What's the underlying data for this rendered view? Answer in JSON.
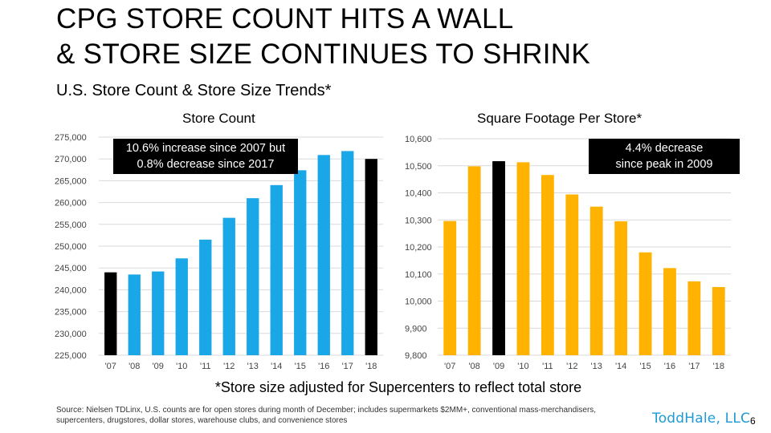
{
  "slide": {
    "title_line1": "CPG STORE COUNT HITS A WALL",
    "title_line2": "& STORE SIZE CONTINUES TO SHRINK",
    "subtitle": "U.S. Store Count & Store Size Trends*",
    "footnote": "*Store size adjusted for Supercenters to reflect total store",
    "source": "Source: Nielsen TDLinx, U.S. counts are for open stores during month of December; includes supermarkets $2MM+, conventional mass-merchandisers, supercenters, drugstores, dollar stores, warehouse clubs, and convenience stores",
    "logo": "ToddHale, LLC",
    "page_number": "6"
  },
  "colors": {
    "left_bar": "#1aa7e8",
    "right_bar": "#ffb300",
    "highlight_bar": "#000000",
    "gridline": "#d9d9d9"
  },
  "chart_data": [
    {
      "type": "bar",
      "title": "Store Count",
      "categories": [
        "'07",
        "'08",
        "'09",
        "'10",
        "'11",
        "'12",
        "'13",
        "'14",
        "'15",
        "'16",
        "'17",
        "'18"
      ],
      "values": [
        244000,
        243500,
        244200,
        247200,
        251500,
        256500,
        261000,
        264000,
        267400,
        270900,
        271800,
        270000
      ],
      "highlight": [
        0,
        11
      ],
      "ylim": [
        225000,
        275000
      ],
      "yticks": [
        225000,
        230000,
        235000,
        240000,
        245000,
        250000,
        255000,
        260000,
        265000,
        270000,
        275000
      ],
      "ytick_labels": [
        "225,000",
        "230,000",
        "235,000",
        "240,000",
        "245,000",
        "250,000",
        "255,000",
        "260,000",
        "265,000",
        "270,000",
        "275,000"
      ],
      "grid": true,
      "annotation": {
        "line1": "10.6% increase since 2007 but",
        "line2": "0.8% decrease since 2017"
      }
    },
    {
      "type": "bar",
      "title": "Square Footage Per Store*",
      "categories": [
        "'07",
        "'08",
        "'09",
        "'10",
        "'11",
        "'12",
        "'13",
        "'14",
        "'15",
        "'16",
        "'17",
        "'18"
      ],
      "values": [
        10296,
        10498,
        10517,
        10513,
        10466,
        10394,
        10349,
        10295,
        10180,
        10122,
        10073,
        10052
      ],
      "highlight": [
        2
      ],
      "ylim": [
        9800,
        10600
      ],
      "yticks": [
        9800,
        9900,
        10000,
        10100,
        10200,
        10300,
        10400,
        10500,
        10600
      ],
      "ytick_labels": [
        "9,800",
        "9,900",
        "10,000",
        "10,100",
        "10,200",
        "10,300",
        "10,400",
        "10,500",
        "10,600"
      ],
      "grid": true,
      "annotation": {
        "line1": "4.4% decrease",
        "line2": "since peak in 2009"
      }
    }
  ]
}
